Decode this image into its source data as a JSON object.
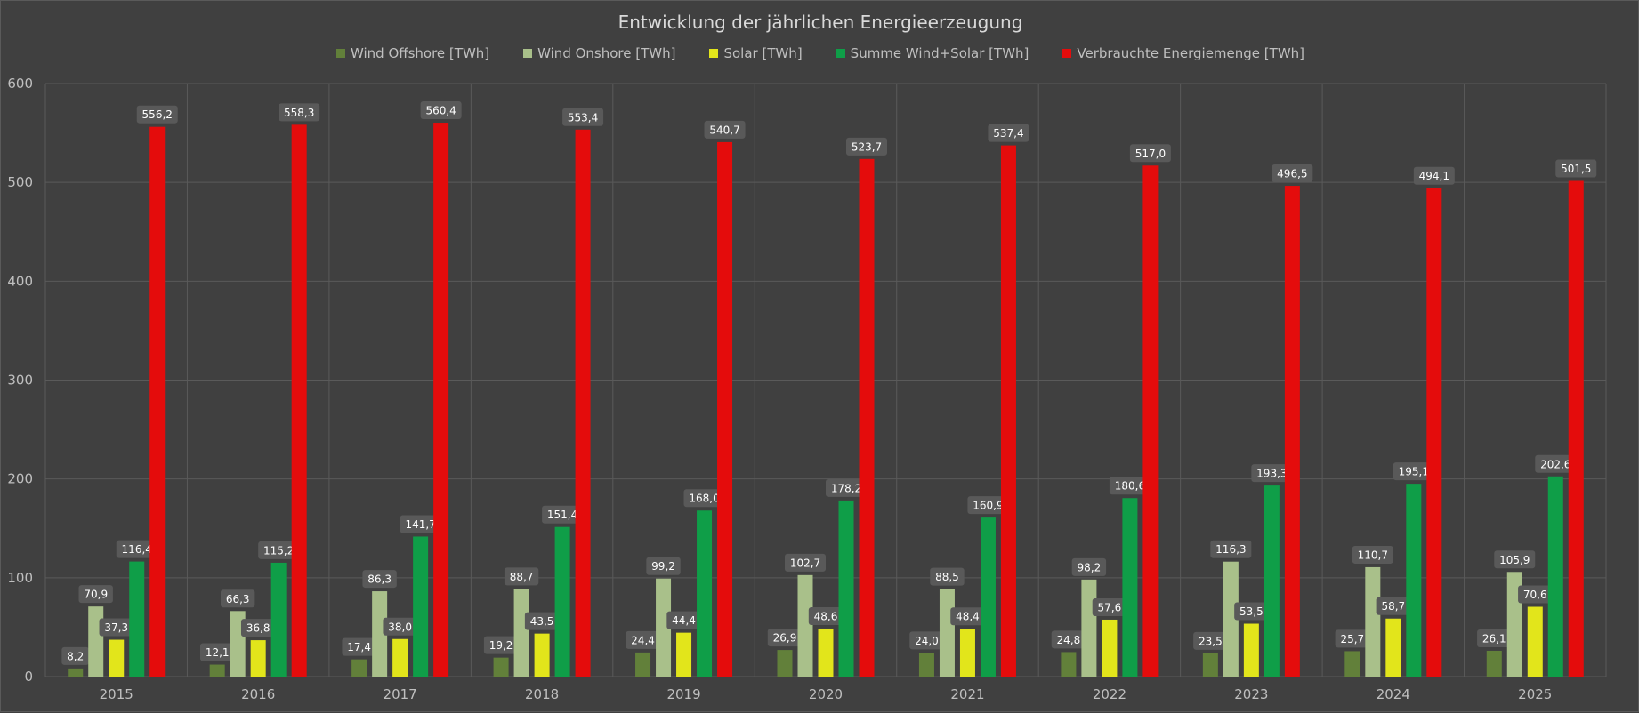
{
  "chart_data": {
    "type": "bar",
    "title": "Entwicklung der jährlichen Energieerzeugung",
    "xlabel": "",
    "ylabel": "",
    "ylim": [
      0,
      600
    ],
    "yticks": [
      0,
      100,
      200,
      300,
      400,
      500,
      600
    ],
    "grid": true,
    "legend_position": "top",
    "categories": [
      "2015",
      "2016",
      "2017",
      "2018",
      "2019",
      "2020",
      "2021",
      "2022",
      "2023",
      "2024",
      "2025"
    ],
    "series": [
      {
        "name": "Wind Offshore [TWh]",
        "color": "#62803a",
        "values": [
          8.2,
          12.1,
          17.4,
          19.2,
          24.4,
          26.9,
          24.0,
          24.8,
          23.5,
          25.7,
          26.1
        ],
        "labels": [
          "8,2",
          "12,1",
          "17,4",
          "19,2",
          "24,4",
          "26,9",
          "24,0",
          "24,8",
          "23,5",
          "25,7",
          "26,1"
        ]
      },
      {
        "name": "Wind Onshore [TWh]",
        "color": "#a9c08a",
        "values": [
          70.9,
          66.3,
          86.3,
          88.7,
          99.2,
          102.7,
          88.5,
          98.2,
          116.3,
          110.7,
          105.9
        ],
        "labels": [
          "70,9",
          "66,3",
          "86,3",
          "88,7",
          "99,2",
          "102,7",
          "88,5",
          "98,2",
          "116,3",
          "110,7",
          "105,9"
        ]
      },
      {
        "name": "Solar [TWh]",
        "color": "#e2e51b",
        "values": [
          37.3,
          36.8,
          38.0,
          43.5,
          44.4,
          48.6,
          48.4,
          57.6,
          53.5,
          58.7,
          70.6
        ],
        "labels": [
          "37,3",
          "36,8",
          "38,0",
          "43,5",
          "44,4",
          "48,6",
          "48,4",
          "57,6",
          "53,5",
          "58,7",
          "70,6"
        ]
      },
      {
        "name": "Summe Wind+Solar [TWh]",
        "color": "#0f9e48",
        "values": [
          116.4,
          115.2,
          141.7,
          151.4,
          168.0,
          178.2,
          160.9,
          180.6,
          193.3,
          195.1,
          202.6
        ],
        "labels": [
          "116,4",
          "115,2",
          "141,7",
          "151,4",
          "168,0",
          "178,2",
          "160,9",
          "180,6",
          "193,3",
          "195,1",
          "202,6"
        ]
      },
      {
        "name": "Verbrauchte Energiemenge [TWh]",
        "color": "#e40c0c",
        "values": [
          556.2,
          558.3,
          560.4,
          553.4,
          540.7,
          523.7,
          537.4,
          517.0,
          496.5,
          494.1,
          501.5
        ],
        "labels": [
          "556,2",
          "558,3",
          "560,4",
          "553,4",
          "540,7",
          "523,7",
          "537,4",
          "517,0",
          "496,5",
          "494,1",
          "501,5"
        ]
      }
    ],
    "colors": {
      "background": "#404040",
      "grid": "#5a5a5a",
      "label_box": "#595959",
      "text": "#bfbfbf"
    }
  }
}
